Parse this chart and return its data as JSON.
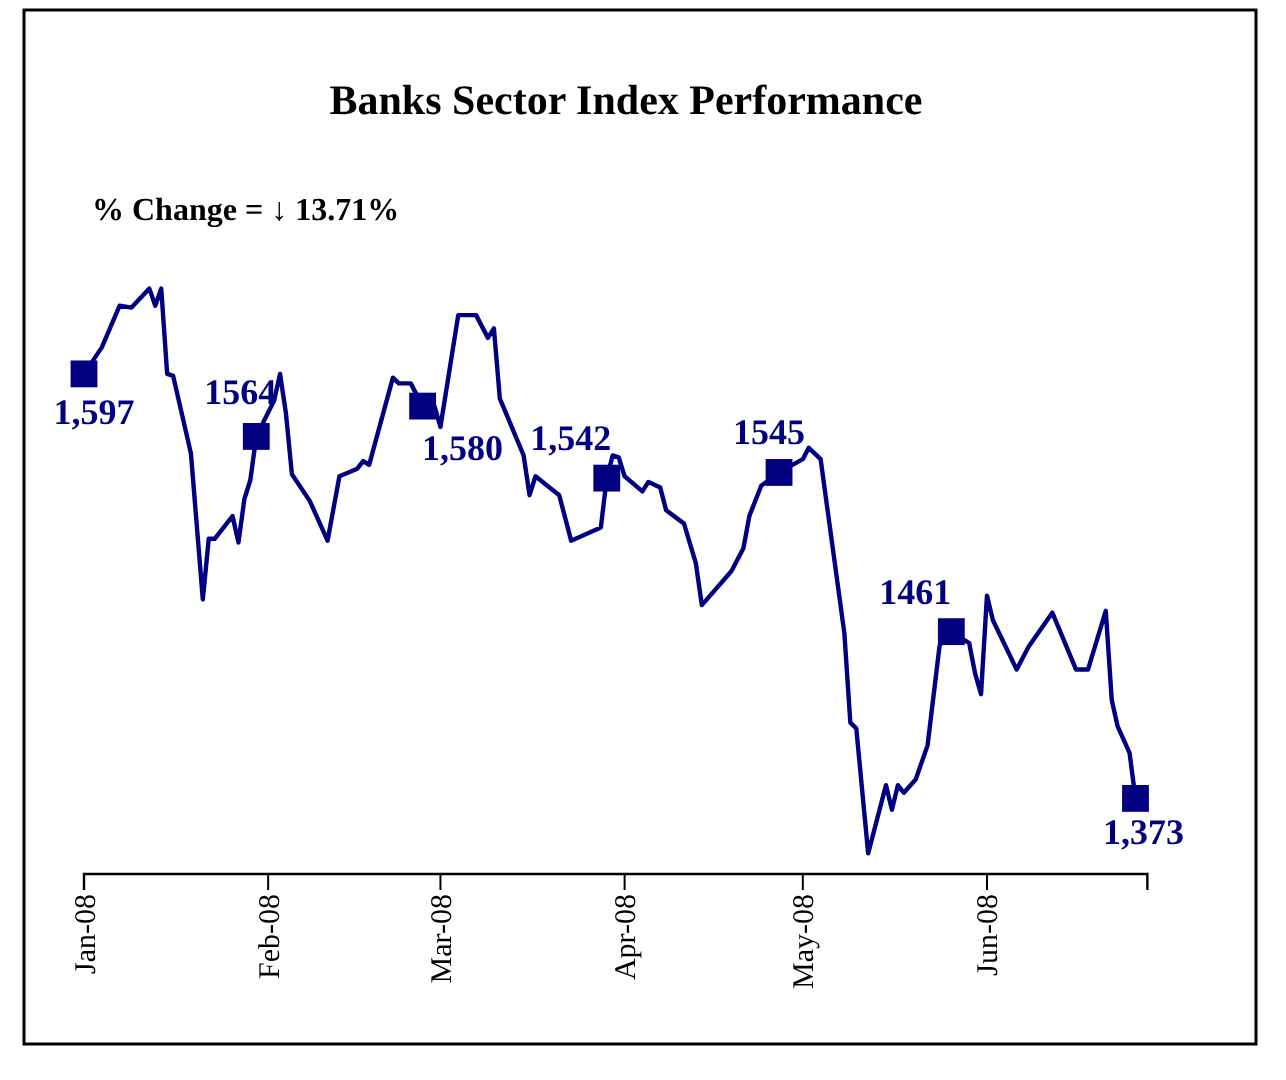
{
  "chart_data": {
    "type": "line",
    "title": "Banks Sector Index Performance",
    "annotations": [
      "% Change = ↓ 13.71%"
    ],
    "xlim": [
      "2008-01-01",
      "2008-06-28"
    ],
    "xticks": [
      {
        "value": "2008-01-01",
        "label": "Jan-08"
      },
      {
        "value": "2008-02-01",
        "label": "Feb-08"
      },
      {
        "value": "2008-03-01",
        "label": "Mar-08"
      },
      {
        "value": "2008-04-01",
        "label": "Apr-08"
      },
      {
        "value": "2008-05-01",
        "label": "May-08"
      },
      {
        "value": "2008-06-01",
        "label": "Jun-08"
      }
    ],
    "tick_labels": "x",
    "grid": false,
    "series": [
      {
        "type": "line",
        "color": "#000080",
        "marker": "none",
        "x": [
          "2008-01-01",
          "2008-01-04",
          "2008-01-07",
          "2008-01-09",
          "2008-01-12",
          "2008-01-13",
          "2008-01-14",
          "2008-01-15",
          "2008-01-16",
          "2008-01-19",
          "2008-01-21",
          "2008-01-22",
          "2008-01-23",
          "2008-01-26",
          "2008-01-27",
          "2008-01-28",
          "2008-01-29",
          "2008-01-30",
          "2008-02-02",
          "2008-02-03",
          "2008-02-04",
          "2008-02-05",
          "2008-02-08",
          "2008-02-11",
          "2008-02-13",
          "2008-02-16",
          "2008-02-17",
          "2008-02-18",
          "2008-02-22",
          "2008-02-23",
          "2008-02-25",
          "2008-02-27",
          "2008-02-29",
          "2008-03-01",
          "2008-03-04",
          "2008-03-07",
          "2008-03-09",
          "2008-03-10",
          "2008-03-11",
          "2008-03-15",
          "2008-03-16",
          "2008-03-17",
          "2008-03-21",
          "2008-03-23",
          "2008-03-28",
          "2008-03-29",
          "2008-03-30",
          "2008-03-31",
          "2008-04-01",
          "2008-04-04",
          "2008-04-05",
          "2008-04-07",
          "2008-04-08",
          "2008-04-11",
          "2008-04-13",
          "2008-04-14",
          "2008-04-19",
          "2008-04-21",
          "2008-04-22",
          "2008-04-24",
          "2008-04-27",
          "2008-05-01",
          "2008-05-02",
          "2008-05-04",
          "2008-05-08",
          "2008-05-09",
          "2008-05-10",
          "2008-05-12",
          "2008-05-15",
          "2008-05-16",
          "2008-05-17",
          "2008-05-18",
          "2008-05-20",
          "2008-05-22",
          "2008-05-24",
          "2008-05-25",
          "2008-05-26",
          "2008-05-29",
          "2008-05-30",
          "2008-05-31",
          "2008-06-01",
          "2008-06-02",
          "2008-06-06",
          "2008-06-08",
          "2008-06-12",
          "2008-06-16",
          "2008-06-18",
          "2008-06-21",
          "2008-06-22",
          "2008-06-23",
          "2008-06-25",
          "2008-06-26"
        ],
        "values": [
          1597,
          1611,
          1633,
          1632,
          1642,
          1633,
          1642,
          1597,
          1596,
          1555,
          1478,
          1510,
          1510,
          1522,
          1508,
          1531,
          1541,
          1564,
          1583,
          1597,
          1576,
          1544,
          1530,
          1509,
          1543,
          1547,
          1551,
          1549,
          1595,
          1592,
          1592,
          1580,
          1580,
          1569,
          1628,
          1628,
          1616,
          1621,
          1584,
          1554,
          1533,
          1543,
          1533,
          1509,
          1516,
          1542,
          1554,
          1553,
          1543,
          1535,
          1540,
          1537,
          1525,
          1518,
          1497,
          1475,
          1493,
          1505,
          1522,
          1538,
          1545,
          1552,
          1558,
          1552,
          1460,
          1413,
          1410,
          1344,
          1380,
          1367,
          1380,
          1376,
          1383,
          1401,
          1453,
          1462,
          1461,
          1455,
          1439,
          1428,
          1480,
          1467,
          1441,
          1453,
          1471,
          1441,
          1441,
          1472,
          1425,
          1411,
          1397,
          1373
        ]
      },
      {
        "type": "scatter",
        "color": "#000080",
        "marker": "square",
        "x": [
          "2008-01-01",
          "2008-01-30",
          "2008-02-27",
          "2008-03-29",
          "2008-04-27",
          "2008-05-26",
          "2008-06-26"
        ],
        "values": [
          1597,
          1564,
          1580,
          1542,
          1545,
          1461,
          1373
        ],
        "value_labels": [
          "1,597",
          "1564",
          "1,580",
          "1,542",
          "1545",
          "1461",
          "1,373"
        ]
      }
    ]
  }
}
